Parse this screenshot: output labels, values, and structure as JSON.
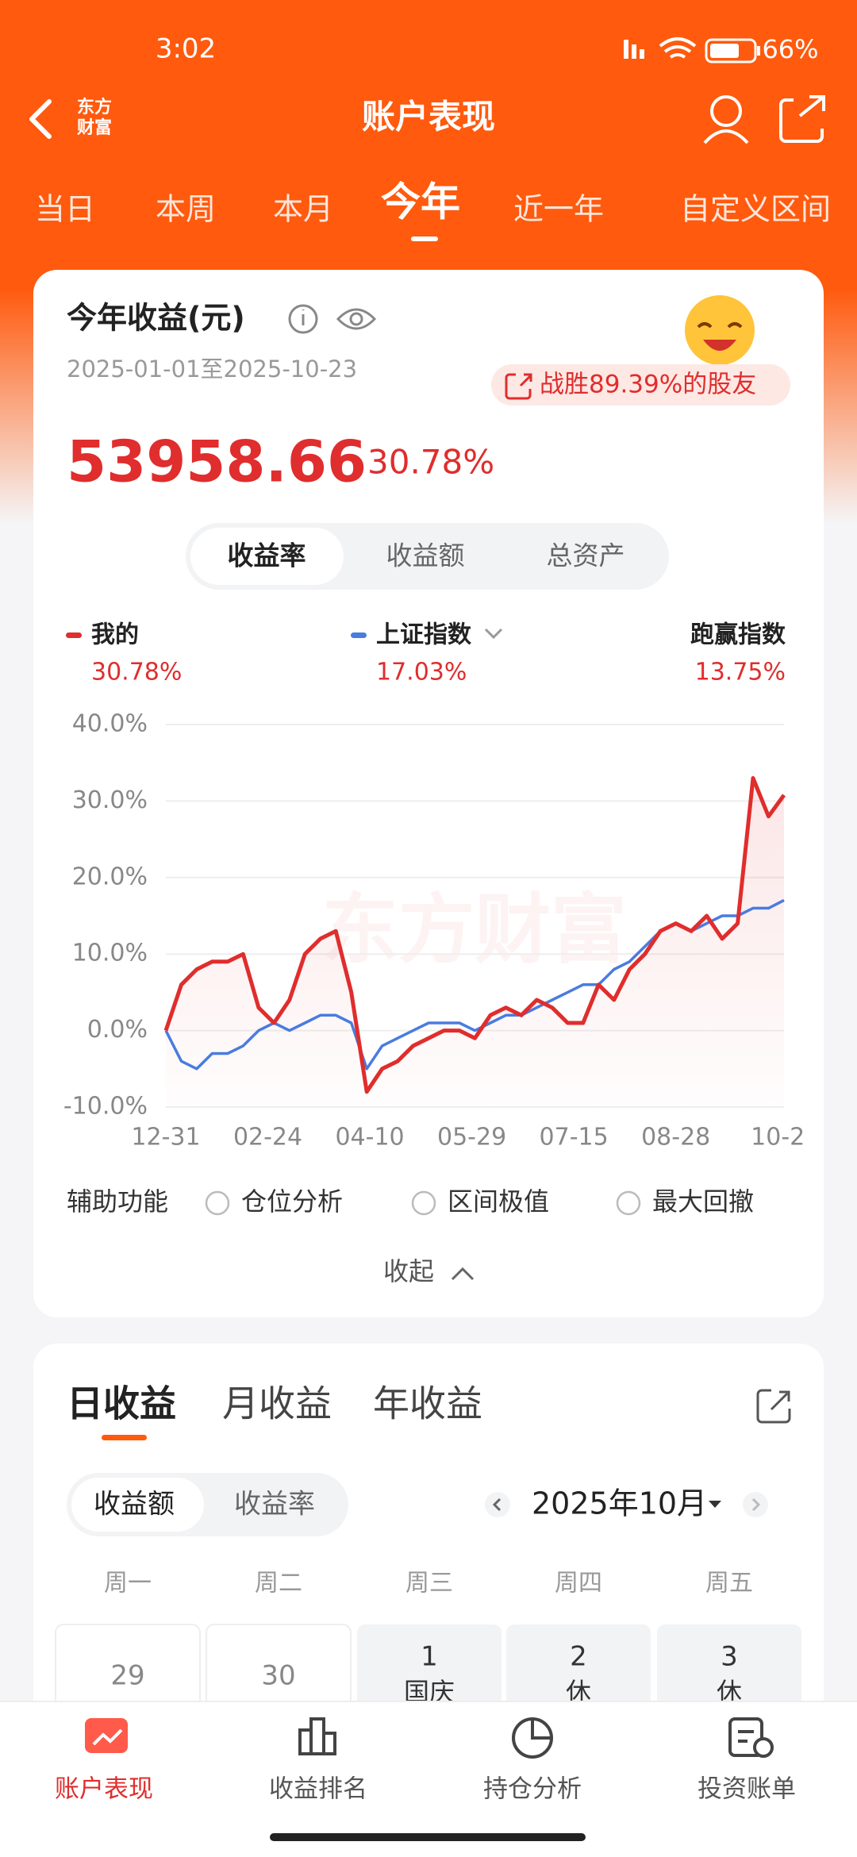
{
  "status_bar": {
    "time": "3:02",
    "battery": "66%"
  },
  "header": {
    "logo": [
      "东方",
      "财富"
    ],
    "title": "账户表现"
  },
  "period_tabs": {
    "items": [
      "当日",
      "本周",
      "本月",
      "今年",
      "近一年",
      "自定义区间"
    ],
    "active": 3
  },
  "summary": {
    "title": "今年收益(元)",
    "date_range": "2025-01-01至2025-10-23",
    "badge": "战胜89.39%的股友",
    "amount": "53958.66",
    "rate": "30.78%"
  },
  "metric_tabs": {
    "items": [
      "收益率",
      "收益额",
      "总资产"
    ],
    "active": 0
  },
  "chart_data": {
    "type": "line",
    "watermark": "东方财富",
    "x": [
      0,
      5,
      10,
      15,
      20,
      25,
      30,
      35,
      40,
      45,
      50,
      55,
      60,
      65,
      70,
      75,
      80,
      85,
      90,
      95,
      100,
      105,
      110,
      115,
      120,
      125,
      130,
      135,
      140,
      145,
      150,
      155,
      160,
      165,
      170,
      175,
      180,
      185,
      190,
      195,
      200
    ],
    "series": [
      {
        "name": "我的",
        "color": "#e02d2d",
        "summary": "30.78%",
        "values": [
          0,
          6,
          8,
          9,
          9,
          10,
          3,
          1,
          4,
          10,
          12,
          13,
          5,
          -8,
          -5,
          -4,
          -2,
          -1,
          0,
          0,
          -1,
          2,
          3,
          2,
          4,
          3,
          1,
          1,
          6,
          4,
          8,
          10,
          13,
          14,
          13,
          15,
          12,
          14,
          33,
          28,
          30.78
        ]
      },
      {
        "name": "上证指数",
        "color": "#4a7be0",
        "summary": "17.03%",
        "values": [
          0,
          -4,
          -5,
          -3,
          -3,
          -2,
          0,
          1,
          0,
          1,
          2,
          2,
          1,
          -5,
          -2,
          -1,
          0,
          1,
          1,
          1,
          0,
          1,
          2,
          2,
          3,
          4,
          5,
          6,
          6,
          8,
          9,
          11,
          13,
          14,
          13,
          14,
          15,
          15,
          16,
          16,
          17.03
        ]
      }
    ],
    "outperform": {
      "name": "跑赢指数",
      "value": "13.75%"
    },
    "xlim": [
      0,
      200
    ],
    "xticks": [
      {
        "value": 0,
        "label": "12-31"
      },
      {
        "value": 33,
        "label": "02-24"
      },
      {
        "value": 66,
        "label": "04-10"
      },
      {
        "value": 99,
        "label": "05-29"
      },
      {
        "value": 132,
        "label": "07-15"
      },
      {
        "value": 165,
        "label": "08-28"
      },
      {
        "value": 198,
        "label": "10-2"
      }
    ],
    "ylim": [
      -10,
      40
    ],
    "yticks": [
      {
        "value": 40,
        "label": "40.0%"
      },
      {
        "value": 30,
        "label": "30.0%"
      },
      {
        "value": 20,
        "label": "20.0%"
      },
      {
        "value": 10,
        "label": "10.0%"
      },
      {
        "value": 0,
        "label": "0.0%"
      },
      {
        "value": -10,
        "label": "-10.0%"
      }
    ],
    "grid": true
  },
  "assist": {
    "label": "辅助功能",
    "options": [
      "仓位分析",
      "区间极值",
      "最大回撤"
    ],
    "collapse": "收起"
  },
  "returns": {
    "tabs": [
      "日收益",
      "月收益",
      "年收益"
    ],
    "toggle": [
      "收益额",
      "收益率"
    ],
    "month": "2025年10月",
    "weekdays": [
      "周一",
      "周二",
      "周三",
      "周四",
      "周五"
    ],
    "days": [
      {
        "day": "29"
      },
      {
        "day": "30"
      },
      {
        "day": "1",
        "note": "国庆"
      },
      {
        "day": "2",
        "note": "休"
      },
      {
        "day": "3",
        "note": "休"
      }
    ]
  },
  "bottom_nav": {
    "items": [
      "账户表现",
      "收益排名",
      "持仓分析",
      "投资账单"
    ],
    "active": 0
  }
}
